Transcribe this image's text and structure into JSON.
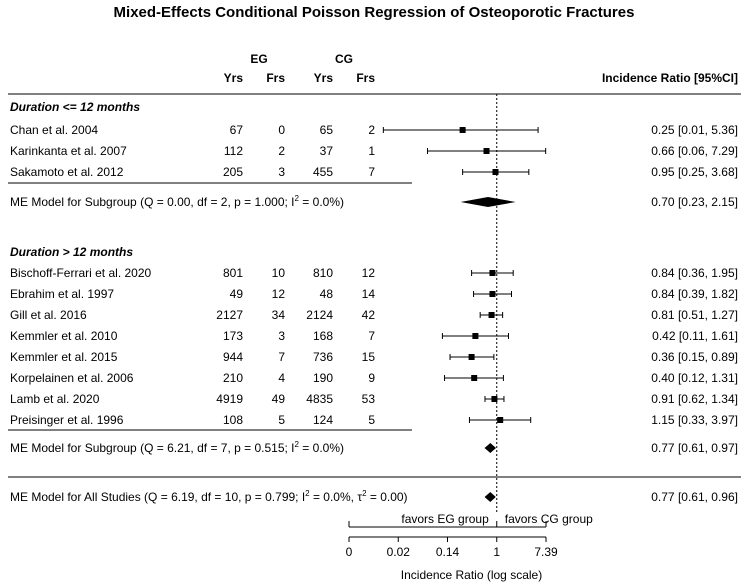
{
  "chart_data": {
    "type": "forest",
    "title": "Mixed-Effects Conditional Poisson Regression of Osteoporotic Fractures",
    "columns": {
      "eg_group": "EG",
      "cg_group": "CG",
      "yrs": "Yrs",
      "frs": "Frs",
      "effect": "Incidence Ratio [95%CI]"
    },
    "xlabel": "Incidence Ratio (log scale)",
    "xticks": [
      "0",
      "0.02",
      "0.14",
      "1",
      "7.39"
    ],
    "x_log_range": [
      -6,
      2
    ],
    "reference_line": 1,
    "favors": {
      "left": "favors EG group",
      "right": "favors CG group"
    },
    "subgroups": [
      {
        "label": "Duration <= 12 months",
        "studies": [
          {
            "study": "Chan et al. 2004",
            "eg_yrs": "67",
            "eg_frs": "0",
            "cg_yrs": "65",
            "cg_frs": "2",
            "ir": 0.25,
            "lo": 0.01,
            "hi": 5.36,
            "ci_text": "0.25 [0.01, 5.36]"
          },
          {
            "study": "Karinkanta et al. 2007",
            "eg_yrs": "112",
            "eg_frs": "2",
            "cg_yrs": "37",
            "cg_frs": "1",
            "ir": 0.66,
            "lo": 0.06,
            "hi": 7.29,
            "ci_text": "0.66 [0.06, 7.29]"
          },
          {
            "study": "Sakamoto et al. 2012",
            "eg_yrs": "205",
            "eg_frs": "3",
            "cg_yrs": "455",
            "cg_frs": "7",
            "ir": 0.95,
            "lo": 0.25,
            "hi": 3.68,
            "ci_text": "0.95 [0.25, 3.68]"
          }
        ],
        "model": {
          "label": "ME Model for Subgroup (Q = 0.00, df = 2, p = 1.000; I",
          "i2_value": " = 0.0%)",
          "ir": 0.7,
          "lo": 0.23,
          "hi": 2.15,
          "ci_text": "0.70 [0.23, 2.15]"
        }
      },
      {
        "label": "Duration > 12 months",
        "studies": [
          {
            "study": "Bischoff-Ferrari et al. 2020",
            "eg_yrs": "801",
            "eg_frs": "10",
            "cg_yrs": "810",
            "cg_frs": "12",
            "ir": 0.84,
            "lo": 0.36,
            "hi": 1.95,
            "ci_text": "0.84 [0.36, 1.95]"
          },
          {
            "study": "Ebrahim et al. 1997",
            "eg_yrs": "49",
            "eg_frs": "12",
            "cg_yrs": "48",
            "cg_frs": "14",
            "ir": 0.84,
            "lo": 0.39,
            "hi": 1.82,
            "ci_text": "0.84 [0.39, 1.82]"
          },
          {
            "study": "Gill et al. 2016",
            "eg_yrs": "2127",
            "eg_frs": "34",
            "cg_yrs": "2124",
            "cg_frs": "42",
            "ir": 0.81,
            "lo": 0.51,
            "hi": 1.27,
            "ci_text": "0.81 [0.51, 1.27]"
          },
          {
            "study": "Kemmler et al.  2010",
            "eg_yrs": "173",
            "eg_frs": "3",
            "cg_yrs": "168",
            "cg_frs": "7",
            "ir": 0.42,
            "lo": 0.11,
            "hi": 1.61,
            "ci_text": "0.42 [0.11, 1.61]"
          },
          {
            "study": "Kemmler et al. 2015",
            "eg_yrs": "944",
            "eg_frs": "7",
            "cg_yrs": "736",
            "cg_frs": "15",
            "ir": 0.36,
            "lo": 0.15,
            "hi": 0.89,
            "ci_text": "0.36 [0.15, 0.89]"
          },
          {
            "study": "Korpelainen et al. 2006",
            "eg_yrs": "210",
            "eg_frs": "4",
            "cg_yrs": "190",
            "cg_frs": "9",
            "ir": 0.4,
            "lo": 0.12,
            "hi": 1.31,
            "ci_text": "0.40 [0.12, 1.31]"
          },
          {
            "study": "Lamb et al. 2020",
            "eg_yrs": "4919",
            "eg_frs": "49",
            "cg_yrs": "4835",
            "cg_frs": "53",
            "ir": 0.91,
            "lo": 0.62,
            "hi": 1.34,
            "ci_text": "0.91 [0.62, 1.34]"
          },
          {
            "study": "Preisinger et al. 1996",
            "eg_yrs": "108",
            "eg_frs": "5",
            "cg_yrs": "124",
            "cg_frs": "5",
            "ir": 1.15,
            "lo": 0.33,
            "hi": 3.97,
            "ci_text": "1.15 [0.33, 3.97]"
          }
        ],
        "model": {
          "label": "ME Model for Subgroup (Q = 6.21, df = 7, p = 0.515; I",
          "i2_value": " = 0.0%)",
          "ir": 0.77,
          "lo": 0.61,
          "hi": 0.97,
          "ci_text": "0.77 [0.61, 0.97]"
        }
      }
    ],
    "overall": {
      "label": "ME Model for All Studies (Q = 6.19, df = 10, p = 0.799; I",
      "i2_value": " = 0.0%, τ",
      "tau_value": " = 0.00)",
      "superscript": "2",
      "ir": 0.77,
      "lo": 0.61,
      "hi": 0.96,
      "ci_text": "0.77 [0.61, 0.96]"
    }
  }
}
